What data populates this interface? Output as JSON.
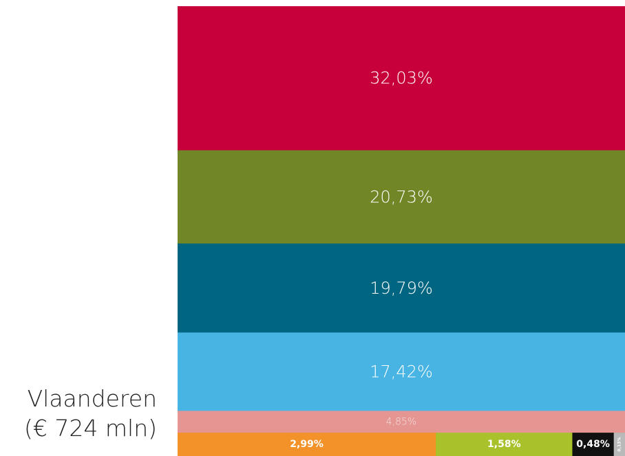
{
  "region": {
    "name": "Vlaanderen",
    "total": "(€  724 mln)"
  },
  "chart_data": {
    "type": "stacked-bar",
    "orientation": "vertical",
    "title": "",
    "unit": "%",
    "segments": [
      {
        "label": "32,03%",
        "value": 32.03,
        "color": "#c8003a",
        "text_color": "#ffffff"
      },
      {
        "label": "20,73%",
        "value": 20.73,
        "color": "#708627",
        "text_color": "#ffffff"
      },
      {
        "label": "19,79%",
        "value": 19.79,
        "color": "#006581",
        "text_color": "#ffffff"
      },
      {
        "label": "17,42%",
        "value": 17.42,
        "color": "#47b4e4",
        "text_color": "#ffffff"
      },
      {
        "label": "4,85%",
        "value": 4.85,
        "color": "#e59592",
        "text_color": "#f6e2e1"
      }
    ],
    "bottom_row": [
      {
        "label": "2,99%",
        "value": 2.99,
        "color": "#f39229",
        "text_color": "#ffffff"
      },
      {
        "label": "1,58%",
        "value": 1.58,
        "color": "#a9c22b",
        "text_color": "#ffffff"
      },
      {
        "label": "0,48%",
        "value": 0.48,
        "color": "#111111",
        "text_color": "#ffffff"
      },
      {
        "label": "0,13%",
        "value": 0.13,
        "color": "#b9b9b9",
        "text_color": "#ffffff"
      }
    ]
  }
}
